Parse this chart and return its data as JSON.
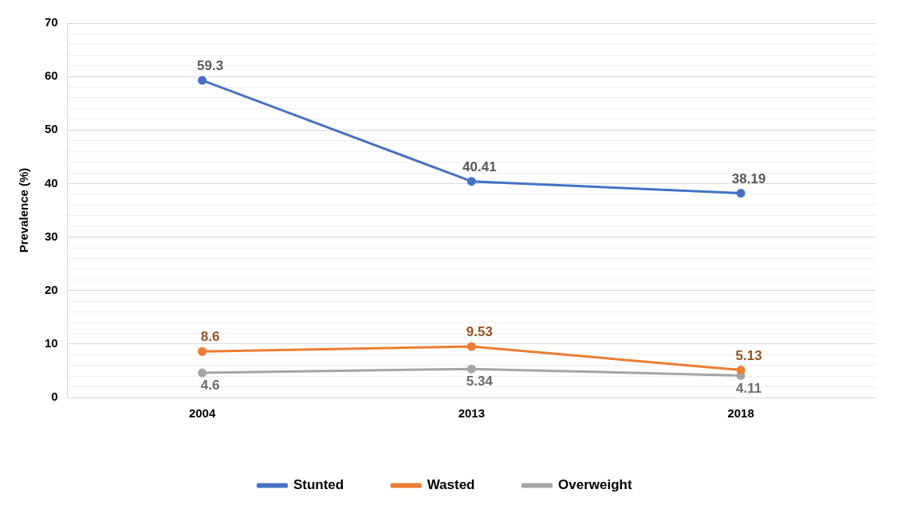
{
  "chart_data": {
    "type": "line",
    "ylabel": "Prevalence (%)",
    "categories": [
      "2004",
      "2013",
      "2018"
    ],
    "series": [
      {
        "name": "Stunted",
        "color": "#4472c4",
        "values": [
          59.3,
          40.41,
          38.19
        ]
      },
      {
        "name": "Wasted",
        "color": "#ed7d31",
        "values": [
          8.6,
          9.53,
          5.13
        ]
      },
      {
        "name": "Overweight",
        "color": "#a5a5a5",
        "values": [
          4.6,
          5.34,
          4.11
        ]
      }
    ],
    "ylim": [
      0,
      70
    ],
    "yticks": [
      0,
      {
        "value": 2,
        "label": null
      },
      {
        "value": 4,
        "label": null
      },
      {
        "value": 6,
        "label": null
      },
      {
        "value": 8,
        "label": null
      },
      10,
      {
        "value": 12,
        "label": null
      },
      {
        "value": 14,
        "label": null
      },
      {
        "value": 16,
        "label": null
      },
      {
        "value": 18,
        "label": null
      },
      20,
      {
        "value": 22,
        "label": null
      },
      {
        "value": 24,
        "label": null
      },
      {
        "value": 26,
        "label": null
      },
      {
        "value": 28,
        "label": null
      },
      30,
      {
        "value": 32,
        "label": null
      },
      {
        "value": 34,
        "label": null
      },
      {
        "value": 36,
        "label": null
      },
      {
        "value": 38,
        "label": null
      },
      40,
      {
        "value": 42,
        "label": null
      },
      {
        "value": 44,
        "label": null
      },
      {
        "value": 46,
        "label": null
      },
      {
        "value": 48,
        "label": null
      },
      50,
      {
        "value": 52,
        "label": null
      },
      {
        "value": 54,
        "label": null
      },
      {
        "value": 56,
        "label": null
      },
      {
        "value": 58,
        "label": null
      },
      60,
      {
        "value": 62,
        "label": null
      },
      {
        "value": 64,
        "label": null
      },
      {
        "value": 66,
        "label": null
      },
      {
        "value": 68,
        "label": null
      },
      70
    ],
    "grid": "y",
    "legend": "bottom",
    "marker": "circle",
    "line_style": "solid",
    "data_labels": true
  }
}
